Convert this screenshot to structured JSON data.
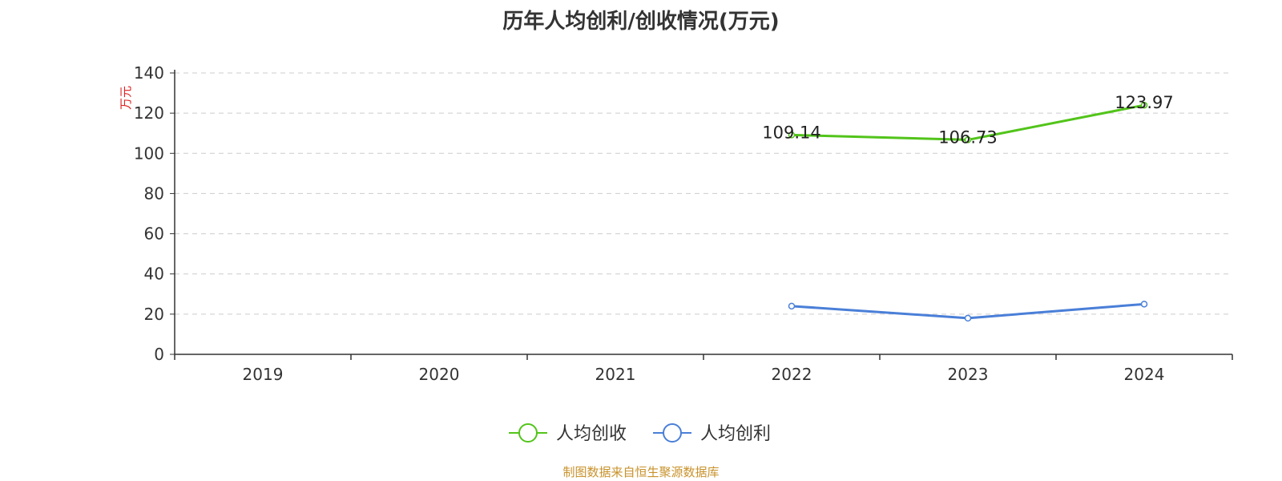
{
  "source_note": "制图数据来自恒生聚源数据库",
  "chart_data": {
    "type": "line",
    "title": "历年人均创利/创收情况(万元)",
    "xlabel": "",
    "ylabel": "万元",
    "categories": [
      "2019",
      "2020",
      "2021",
      "2022",
      "2023",
      "2024"
    ],
    "ylim": [
      0,
      140
    ],
    "yticks": [
      0,
      20,
      40,
      60,
      80,
      100,
      120,
      140
    ],
    "grid": true,
    "legend_position": "bottom",
    "series": [
      {
        "name": "人均创收",
        "color": "#52c41a",
        "values": [
          null,
          null,
          null,
          109.14,
          106.73,
          123.97
        ],
        "labels": [
          "",
          "",
          "",
          "109.14",
          "106.73",
          "123.97"
        ]
      },
      {
        "name": "人均创利",
        "color": "#4a7fd8",
        "values": [
          null,
          null,
          null,
          24.0,
          18.0,
          25.0
        ],
        "labels": [
          "",
          "",
          "",
          "",
          "",
          ""
        ]
      }
    ]
  }
}
